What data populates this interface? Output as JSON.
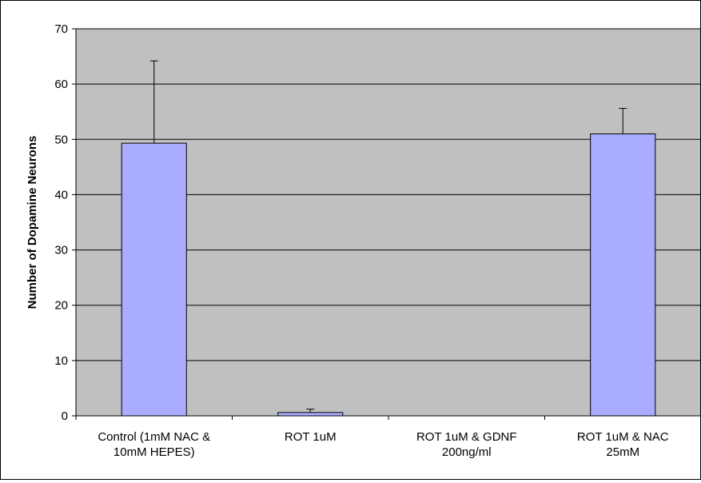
{
  "chart_data": {
    "type": "bar",
    "ylabel": "Number of Dopamine Neurons",
    "xlabel": "",
    "title": "",
    "categories": [
      [
        "Control (1mM NAC &",
        "10mM HEPES)"
      ],
      [
        "ROT 1uM"
      ],
      [
        "ROT 1uM & GDNF",
        "200ng/ml"
      ],
      [
        "ROT 1uM & NAC",
        "25mM"
      ]
    ],
    "values": [
      49.3,
      0.6,
      0,
      51.0
    ],
    "error_upper": [
      14.9,
      0.6,
      0,
      4.6
    ],
    "ylim": [
      0,
      70
    ],
    "yticks": [
      0,
      10,
      20,
      30,
      40,
      50,
      60,
      70
    ],
    "grid": true,
    "legend": "none",
    "colors": {
      "bar_fill": "#A9ACFF",
      "plot_background": "#C0C0C0",
      "gridline": "#000000"
    }
  }
}
